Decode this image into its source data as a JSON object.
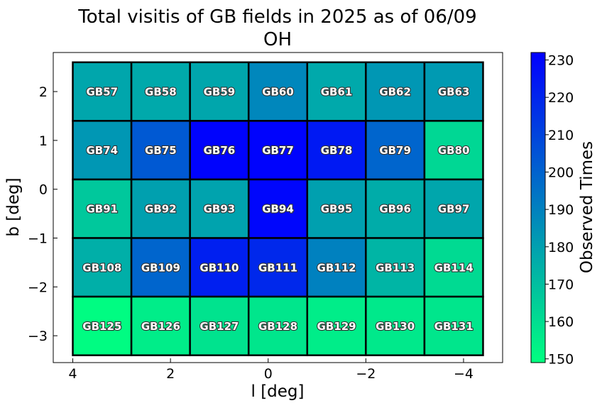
{
  "chart_data": {
    "type": "heatmap",
    "title_line1": "Total visitis of GB fields in 2025 as of 06/09",
    "title_line2": "OH",
    "xlabel": "l [deg]",
    "ylabel": "b [deg]",
    "xlim": [
      4.4,
      -4.8
    ],
    "ylim": [
      -3.55,
      2.8
    ],
    "x_ticks": [
      4,
      2,
      0,
      -2,
      -4
    ],
    "x_tick_labels": [
      "4",
      "2",
      "0",
      "−2",
      "−4"
    ],
    "y_ticks": [
      2,
      1,
      0,
      -1,
      -2,
      -3
    ],
    "y_tick_labels": [
      "2",
      "1",
      "0",
      "−1",
      "−2",
      "−3"
    ],
    "x_edges": [
      4.0,
      2.8,
      1.6,
      0.4,
      -0.8,
      -2.0,
      -3.2,
      -4.4
    ],
    "y_edges": [
      2.6,
      1.4,
      0.2,
      -1.0,
      -2.2,
      -3.4
    ],
    "colorbar": {
      "label": "Observed Times",
      "min": 149,
      "max": 232,
      "ticks": [
        150,
        160,
        170,
        180,
        190,
        200,
        210,
        220,
        230
      ],
      "colors": [
        "#00ff80",
        "#0000ff"
      ]
    },
    "rows": [
      {
        "names": [
          "GB57",
          "GB58",
          "GB59",
          "GB60",
          "GB61",
          "GB62",
          "GB63"
        ],
        "values": [
          178,
          177,
          178,
          188,
          177,
          183,
          182
        ]
      },
      {
        "names": [
          "GB74",
          "GB75",
          "GB76",
          "GB77",
          "GB78",
          "GB79",
          "GB80"
        ],
        "values": [
          183,
          203,
          231,
          231,
          224,
          199,
          162
        ]
      },
      {
        "names": [
          "GB91",
          "GB92",
          "GB93",
          "GB94",
          "GB95",
          "GB96",
          "GB97"
        ],
        "values": [
          167,
          180,
          179,
          230,
          180,
          176,
          178
        ]
      },
      {
        "names": [
          "GB108",
          "GB109",
          "GB110",
          "GB111",
          "GB112",
          "GB113",
          "GB114"
        ],
        "values": [
          175,
          199,
          222,
          219,
          190,
          173,
          161
        ]
      },
      {
        "names": [
          "GB125",
          "GB126",
          "GB127",
          "GB128",
          "GB129",
          "GB130",
          "GB131"
        ],
        "values": [
          150,
          155,
          158,
          157,
          155,
          156,
          157
        ]
      }
    ]
  }
}
